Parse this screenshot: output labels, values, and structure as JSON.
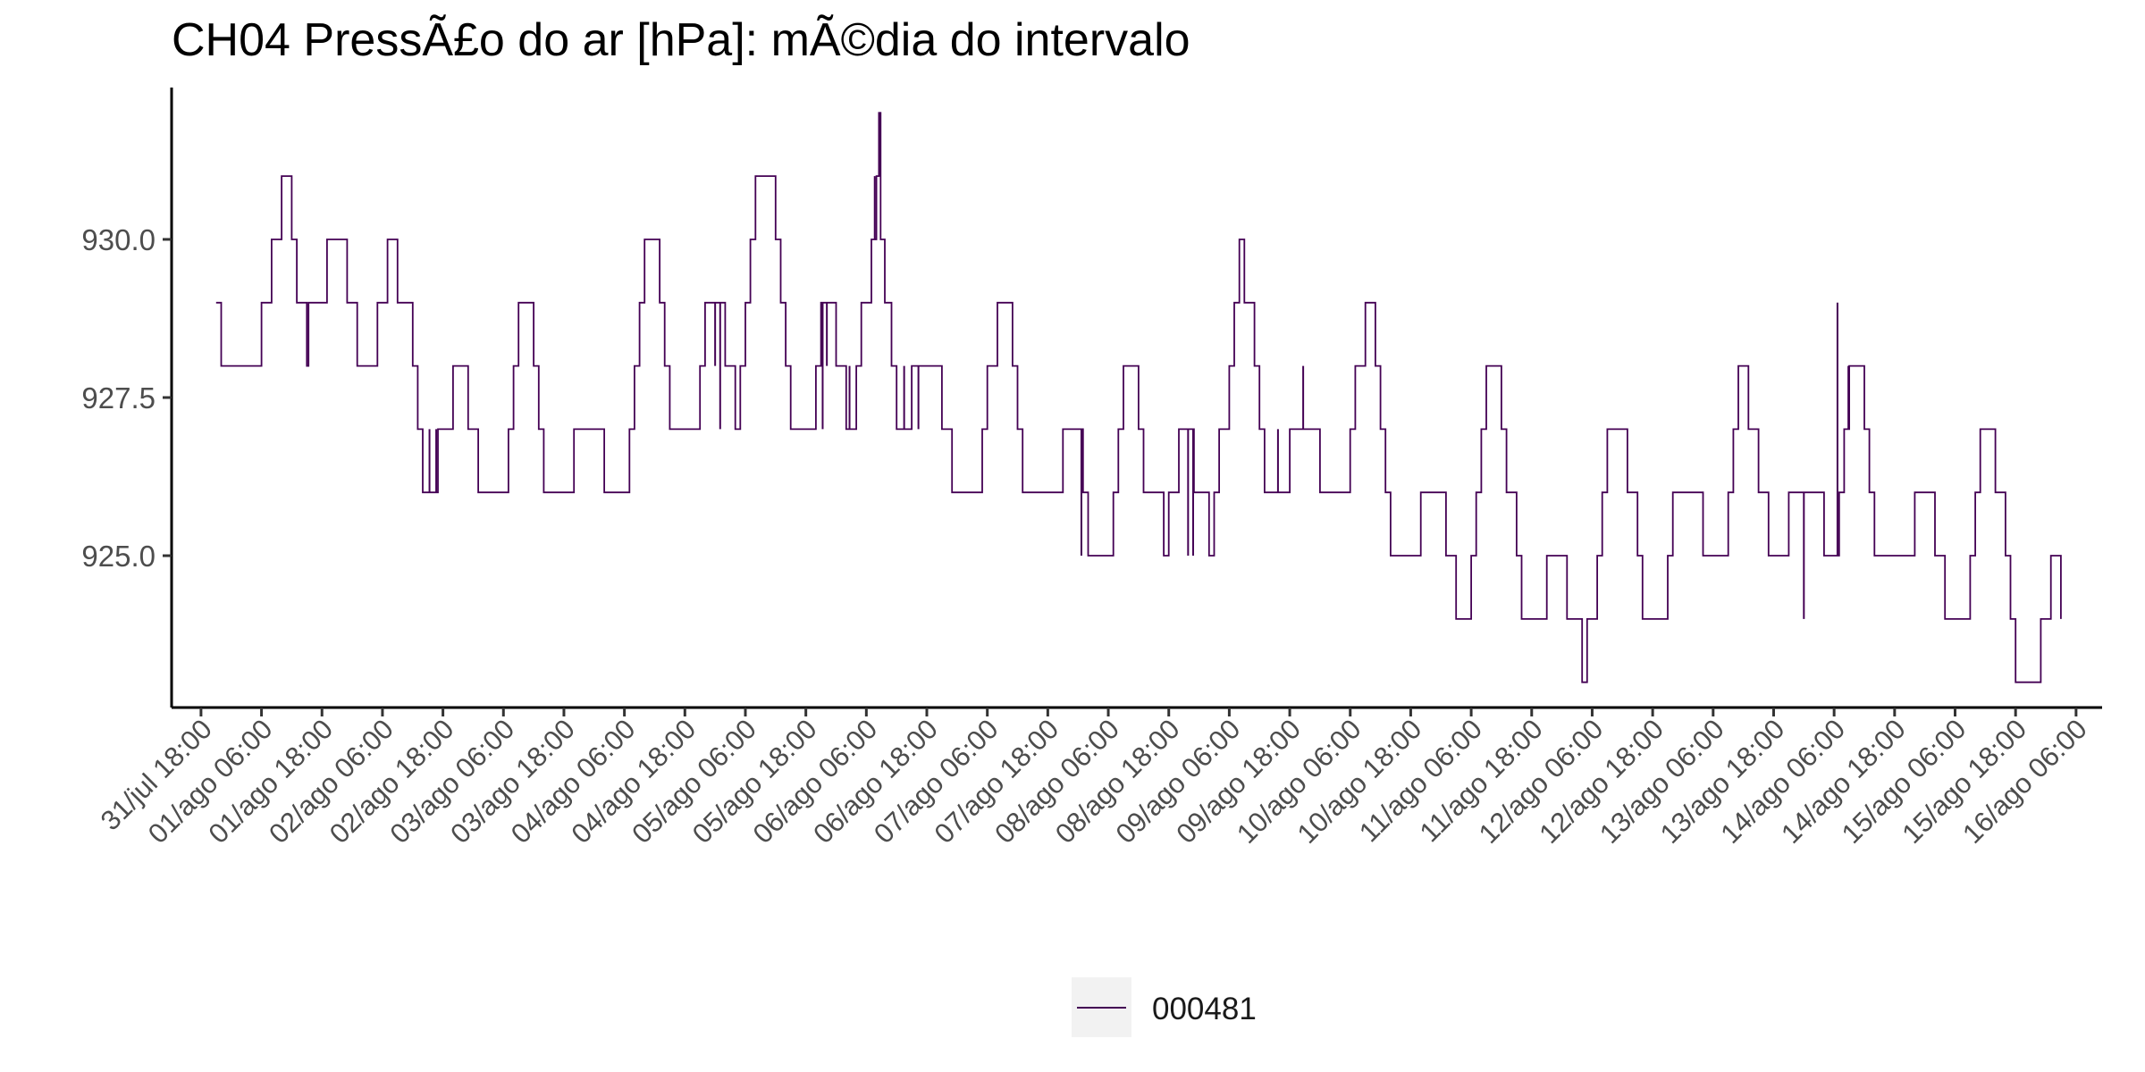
{
  "chart_data": {
    "type": "line",
    "title": "CH04 PressÃ£o do ar [hPa]: mÃ©dia do intervalo",
    "subtitle": "",
    "xlabel": "",
    "ylabel": "",
    "x_axis": "datetime",
    "x_ticks": [
      "31/jul 18:00",
      "01/ago 06:00",
      "01/ago 18:00",
      "02/ago 06:00",
      "02/ago 18:00",
      "03/ago 06:00",
      "03/ago 18:00",
      "04/ago 06:00",
      "04/ago 18:00",
      "05/ago 06:00",
      "05/ago 18:00",
      "06/ago 06:00",
      "06/ago 18:00",
      "07/ago 06:00",
      "07/ago 18:00",
      "08/ago 06:00",
      "08/ago 18:00",
      "09/ago 06:00",
      "09/ago 18:00",
      "10/ago 06:00",
      "10/ago 18:00",
      "11/ago 06:00",
      "11/ago 18:00",
      "12/ago 06:00",
      "12/ago 18:00",
      "13/ago 06:00",
      "13/ago 18:00",
      "14/ago 06:00",
      "14/ago 18:00",
      "15/ago 06:00",
      "15/ago 18:00",
      "16/ago 06:00"
    ],
    "xlim": [
      "31/jul 12:10",
      "16/ago 11:10"
    ],
    "y_ticks": [
      "925.0",
      "927.5",
      "930.0"
    ],
    "y_tick_values": [
      925.0,
      927.5,
      930.0
    ],
    "ylim": [
      922.6,
      932.4
    ],
    "grid": false,
    "step": true,
    "legend": {
      "position": "bottom"
    },
    "series": [
      {
        "name": "000481",
        "color": "#440154",
        "points": [
          [
            "31/jul 21:00",
            929
          ],
          [
            "31/jul 22:00",
            928
          ],
          [
            "01/ago 06:00",
            929
          ],
          [
            "01/ago 08:00",
            930
          ],
          [
            "01/ago 10:00",
            931
          ],
          [
            "01/ago 12:00",
            930
          ],
          [
            "01/ago 13:00",
            929
          ],
          [
            "01/ago 15:00",
            928
          ],
          [
            "01/ago 15:20",
            929
          ],
          [
            "01/ago 19:00",
            930
          ],
          [
            "01/ago 23:00",
            929
          ],
          [
            "02/ago 01:00",
            928
          ],
          [
            "02/ago 05:00",
            929
          ],
          [
            "02/ago 07:00",
            930
          ],
          [
            "02/ago 09:00",
            929
          ],
          [
            "02/ago 12:00",
            928
          ],
          [
            "02/ago 13:00",
            927
          ],
          [
            "02/ago 14:00",
            926
          ],
          [
            "02/ago 17:00",
            927
          ],
          [
            "02/ago 20:00",
            928
          ],
          [
            "02/ago 23:00",
            927
          ],
          [
            "03/ago 01:00",
            926
          ],
          [
            "03/ago 07:00",
            927
          ],
          [
            "03/ago 08:00",
            928
          ],
          [
            "03/ago 09:00",
            929
          ],
          [
            "03/ago 12:00",
            928
          ],
          [
            "03/ago 13:00",
            927
          ],
          [
            "03/ago 14:00",
            926
          ],
          [
            "03/ago 20:00",
            927
          ],
          [
            "04/ago 02:00",
            926
          ],
          [
            "04/ago 07:00",
            927
          ],
          [
            "04/ago 08:00",
            928
          ],
          [
            "04/ago 09:00",
            929
          ],
          [
            "04/ago 10:00",
            930
          ],
          [
            "04/ago 13:00",
            929
          ],
          [
            "04/ago 14:00",
            928
          ],
          [
            "04/ago 15:00",
            927
          ],
          [
            "04/ago 21:00",
            928
          ],
          [
            "04/ago 22:00",
            929
          ],
          [
            "05/ago 02:00",
            928
          ],
          [
            "05/ago 04:00",
            927
          ],
          [
            "05/ago 05:00",
            928
          ],
          [
            "05/ago 06:00",
            929
          ],
          [
            "05/ago 07:00",
            930
          ],
          [
            "05/ago 08:00",
            931
          ],
          [
            "05/ago 12:00",
            930
          ],
          [
            "05/ago 13:00",
            929
          ],
          [
            "05/ago 14:00",
            928
          ],
          [
            "05/ago 15:00",
            927
          ],
          [
            "05/ago 20:00",
            928
          ],
          [
            "05/ago 21:00",
            929
          ],
          [
            "06/ago 00:00",
            928
          ],
          [
            "06/ago 02:00",
            927
          ],
          [
            "06/ago 04:00",
            928
          ],
          [
            "06/ago 05:00",
            929
          ],
          [
            "06/ago 07:00",
            930
          ],
          [
            "06/ago 08:00",
            931
          ],
          [
            "06/ago 08:30",
            932
          ],
          [
            "06/ago 08:50",
            930
          ],
          [
            "06/ago 09:40",
            929
          ],
          [
            "06/ago 11:00",
            928
          ],
          [
            "06/ago 12:00",
            927
          ],
          [
            "06/ago 15:00",
            928
          ],
          [
            "06/ago 21:00",
            927
          ],
          [
            "06/ago 23:00",
            926
          ],
          [
            "07/ago 05:00",
            927
          ],
          [
            "07/ago 06:00",
            928
          ],
          [
            "07/ago 08:00",
            929
          ],
          [
            "07/ago 11:00",
            928
          ],
          [
            "07/ago 12:00",
            927
          ],
          [
            "07/ago 13:00",
            926
          ],
          [
            "07/ago 21:00",
            927
          ],
          [
            "08/ago 01:00",
            926
          ],
          [
            "08/ago 02:00",
            925
          ],
          [
            "08/ago 07:00",
            926
          ],
          [
            "08/ago 08:00",
            927
          ],
          [
            "08/ago 09:00",
            928
          ],
          [
            "08/ago 12:00",
            927
          ],
          [
            "08/ago 13:00",
            926
          ],
          [
            "08/ago 17:00",
            925
          ],
          [
            "08/ago 18:00",
            926
          ],
          [
            "08/ago 20:00",
            927
          ],
          [
            "08/ago 23:00",
            926
          ],
          [
            "09/ago 02:00",
            925
          ],
          [
            "09/ago 03:00",
            926
          ],
          [
            "09/ago 04:00",
            927
          ],
          [
            "09/ago 06:00",
            928
          ],
          [
            "09/ago 07:00",
            929
          ],
          [
            "09/ago 08:00",
            930
          ],
          [
            "09/ago 09:00",
            929
          ],
          [
            "09/ago 11:00",
            928
          ],
          [
            "09/ago 12:00",
            927
          ],
          [
            "09/ago 13:00",
            926
          ],
          [
            "09/ago 18:00",
            927
          ],
          [
            "10/ago 00:00",
            926
          ],
          [
            "10/ago 06:00",
            927
          ],
          [
            "10/ago 07:00",
            928
          ],
          [
            "10/ago 09:00",
            929
          ],
          [
            "10/ago 11:00",
            928
          ],
          [
            "10/ago 12:00",
            927
          ],
          [
            "10/ago 13:00",
            926
          ],
          [
            "10/ago 14:00",
            925
          ],
          [
            "10/ago 20:00",
            926
          ],
          [
            "11/ago 01:00",
            925
          ],
          [
            "11/ago 03:00",
            924
          ],
          [
            "11/ago 06:00",
            925
          ],
          [
            "11/ago 07:00",
            926
          ],
          [
            "11/ago 08:00",
            927
          ],
          [
            "11/ago 09:00",
            928
          ],
          [
            "11/ago 12:00",
            927
          ],
          [
            "11/ago 13:00",
            926
          ],
          [
            "11/ago 15:00",
            925
          ],
          [
            "11/ago 16:00",
            924
          ],
          [
            "11/ago 21:00",
            925
          ],
          [
            "12/ago 01:00",
            924
          ],
          [
            "12/ago 04:00",
            923
          ],
          [
            "12/ago 05:00",
            924
          ],
          [
            "12/ago 07:00",
            925
          ],
          [
            "12/ago 08:00",
            926
          ],
          [
            "12/ago 09:00",
            927
          ],
          [
            "12/ago 13:00",
            926
          ],
          [
            "12/ago 15:00",
            925
          ],
          [
            "12/ago 16:00",
            924
          ],
          [
            "12/ago 21:00",
            925
          ],
          [
            "12/ago 22:00",
            926
          ],
          [
            "13/ago 04:00",
            925
          ],
          [
            "13/ago 09:00",
            926
          ],
          [
            "13/ago 10:00",
            927
          ],
          [
            "13/ago 11:00",
            928
          ],
          [
            "13/ago 13:00",
            927
          ],
          [
            "13/ago 15:00",
            926
          ],
          [
            "13/ago 17:00",
            925
          ],
          [
            "13/ago 21:00",
            926
          ],
          [
            "14/ago 04:00",
            925
          ],
          [
            "14/ago 07:00",
            926
          ],
          [
            "14/ago 08:00",
            927
          ],
          [
            "14/ago 09:00",
            928
          ],
          [
            "14/ago 12:00",
            927
          ],
          [
            "14/ago 13:00",
            926
          ],
          [
            "14/ago 14:00",
            925
          ],
          [
            "14/ago 22:00",
            926
          ],
          [
            "15/ago 02:00",
            925
          ],
          [
            "15/ago 04:00",
            924
          ],
          [
            "15/ago 09:00",
            925
          ],
          [
            "15/ago 10:00",
            926
          ],
          [
            "15/ago 11:00",
            927
          ],
          [
            "15/ago 14:00",
            926
          ],
          [
            "15/ago 16:00",
            925
          ],
          [
            "15/ago 17:00",
            924
          ],
          [
            "15/ago 18:00",
            923
          ],
          [
            "15/ago 23:00",
            924
          ],
          [
            "16/ago 01:00",
            925
          ],
          [
            "16/ago 03:00",
            924
          ]
        ],
        "spikes": [
          [
            "01/ago 15:10",
            928
          ],
          [
            "02/ago 15:20",
            927
          ],
          [
            "02/ago 16:20",
            926
          ],
          [
            "02/ago 16:40",
            927
          ],
          [
            "05/ago 00:00",
            928
          ],
          [
            "05/ago 01:00",
            927
          ],
          [
            "05/ago 20:40",
            928
          ],
          [
            "05/ago 21:20",
            927
          ],
          [
            "05/ago 22:10",
            928
          ],
          [
            "06/ago 02:40",
            928
          ],
          [
            "06/ago 07:40",
            931
          ],
          [
            "06/ago 08:40",
            931
          ],
          [
            "06/ago 13:30",
            928
          ],
          [
            "06/ago 14:20",
            927
          ],
          [
            "06/ago 16:20",
            927
          ],
          [
            "08/ago 00:40",
            925
          ],
          [
            "08/ago 21:50",
            925
          ],
          [
            "08/ago 22:50",
            925
          ],
          [
            "09/ago 02:30",
            925
          ],
          [
            "09/ago 12:40",
            927
          ],
          [
            "09/ago 15:40",
            927
          ],
          [
            "09/ago 20:40",
            928
          ],
          [
            "10/ago 06:10",
            927
          ],
          [
            "12/ago 04:30",
            923
          ],
          [
            "14/ago 00:00",
            924
          ],
          [
            "14/ago 06:40",
            929
          ],
          [
            "14/ago 08:50",
            928
          ],
          [
            "16/ago 03:20",
            924
          ]
        ]
      }
    ]
  }
}
